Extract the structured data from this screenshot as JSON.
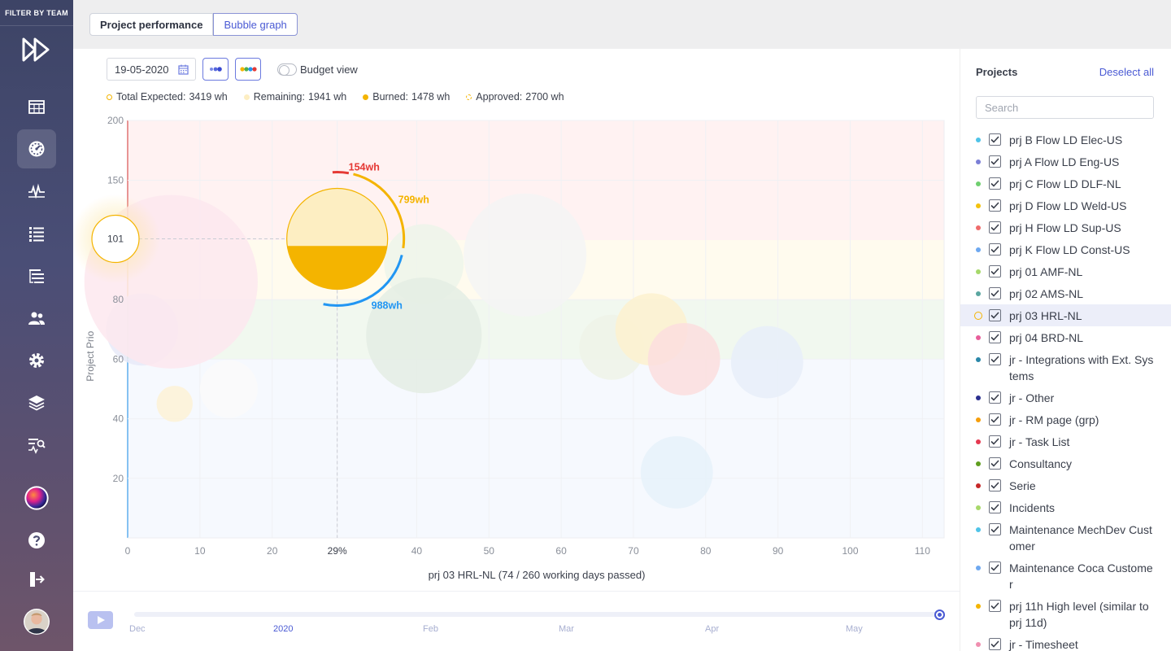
{
  "sidebar": {
    "filter_label": "FILTER BY TEAM",
    "items": [
      {
        "name": "calendar-grid-icon",
        "active": false
      },
      {
        "name": "dashboard-gauge-icon",
        "active": true
      },
      {
        "name": "activity-pulse-icon",
        "active": false
      },
      {
        "name": "list-icon",
        "active": false
      },
      {
        "name": "tree-list-icon",
        "active": false
      },
      {
        "name": "users-icon",
        "active": false
      },
      {
        "name": "gear-icon",
        "active": false
      },
      {
        "name": "layers-icon",
        "active": false
      },
      {
        "name": "report-search-icon",
        "active": false
      },
      {
        "name": "color-orb-icon",
        "active": false
      },
      {
        "name": "help-icon",
        "active": false
      },
      {
        "name": "logout-icon",
        "active": false
      },
      {
        "name": "user-avatar",
        "active": false
      }
    ]
  },
  "tabs": [
    {
      "label": "Project performance",
      "selected": false
    },
    {
      "label": "Bubble graph",
      "selected": true
    }
  ],
  "toolbar": {
    "date": "19-05-2020",
    "budget_view_label": "Budget view",
    "budget_view_on": false
  },
  "legend": [
    {
      "label": "Total Expected:",
      "value": "3419 wh",
      "color": "#f4b400",
      "style": "ring"
    },
    {
      "label": "Remaining:",
      "value": "1941 wh",
      "color": "#fdeec2",
      "style": "fill"
    },
    {
      "label": "Burned:",
      "value": "1478 wh",
      "color": "#f4b400",
      "style": "fill"
    },
    {
      "label": "Approved:",
      "value": "2700 wh",
      "color": "#f4b400",
      "style": "dashed"
    }
  ],
  "chart_data": {
    "type": "scatter",
    "ylabel": "Project Prio",
    "xlabel": "prj 03 HRL-NL (74 / 260 working days passed)",
    "xlim": [
      0,
      113
    ],
    "ylim": [
      0,
      200
    ],
    "x_ticks": [
      0,
      10,
      20,
      29,
      40,
      50,
      60,
      70,
      80,
      90,
      100,
      110
    ],
    "x_tick_labels": [
      "0",
      "10",
      "20",
      "29%",
      "40",
      "50",
      "60",
      "70",
      "80",
      "90",
      "100",
      "110"
    ],
    "y_ticks": [
      20,
      40,
      60,
      80,
      150,
      200
    ],
    "bands": [
      {
        "from": 0,
        "to": 60,
        "color": "#f6f9fe",
        "axis_color": "#2196f3"
      },
      {
        "from": 60,
        "to": 80,
        "color": "#f1f8ef",
        "axis_color": "#4caf50"
      },
      {
        "from": 80,
        "to": 100,
        "color": "#fffbee",
        "axis_color": "#f4b400"
      },
      {
        "from": 100,
        "to": 200,
        "color": "#fff2f2",
        "axis_color": "#e53935"
      }
    ],
    "selected": {
      "name": "prj 03 HRL-NL",
      "x": 29,
      "y": 101,
      "prio_label": "101",
      "burned_fraction": 0.43,
      "arcs": [
        {
          "label": "154wh",
          "color": "#e53935"
        },
        {
          "label": "799wh",
          "color": "#f4b400"
        },
        {
          "label": "988wh",
          "color": "#2196f3"
        }
      ]
    },
    "bubbles": [
      {
        "x": 2,
        "y": 70,
        "r": 5,
        "color": "#e8eaf8"
      },
      {
        "x": 6,
        "y": 86,
        "r": 12,
        "color": "#fde8ee"
      },
      {
        "x": 6.5,
        "y": 45,
        "r": 2.5,
        "color": "#fdf2d6"
      },
      {
        "x": 14,
        "y": 50,
        "r": 4,
        "color": "#fafafa"
      },
      {
        "x": 41,
        "y": 92,
        "r": 5.5,
        "color": "#edf5ea"
      },
      {
        "x": 41,
        "y": 68,
        "r": 8,
        "color": "#e4ede4"
      },
      {
        "x": 55,
        "y": 95,
        "r": 8.5,
        "color": "#f4f4f4"
      },
      {
        "x": 67,
        "y": 64,
        "r": 4.5,
        "color": "#eef3e8"
      },
      {
        "x": 72.5,
        "y": 70,
        "r": 5,
        "color": "#fdf1cf"
      },
      {
        "x": 77,
        "y": 60,
        "r": 5,
        "color": "#fbdede"
      },
      {
        "x": 88.5,
        "y": 59,
        "r": 5,
        "color": "#e8eef9"
      },
      {
        "x": 76,
        "y": 22,
        "r": 5,
        "color": "#e6f2fa"
      }
    ]
  },
  "timeline": {
    "labels": [
      {
        "text": "Dec",
        "year": false
      },
      {
        "text": "2020",
        "year": true
      },
      {
        "text": "Feb",
        "year": false
      },
      {
        "text": "Mar",
        "year": false
      },
      {
        "text": "Apr",
        "year": false
      },
      {
        "text": "May",
        "year": false
      }
    ],
    "progress": 1.0
  },
  "projects": {
    "title": "Projects",
    "deselect_label": "Deselect all",
    "search_placeholder": "Search",
    "items": [
      {
        "name": "prj B Flow LD Elec-US",
        "color": "#4fc3e8",
        "checked": true,
        "highlighted": false
      },
      {
        "name": "prj A Flow LD Eng-US",
        "color": "#7b7fd6",
        "checked": true,
        "highlighted": false
      },
      {
        "name": "prj C Flow LD DLF-NL",
        "color": "#6fcf6f",
        "checked": true,
        "highlighted": false
      },
      {
        "name": "prj D Flow LD Weld-US",
        "color": "#f4c20d",
        "checked": true,
        "highlighted": false
      },
      {
        "name": "prj H Flow LD Sup-US",
        "color": "#ef6b6b",
        "checked": true,
        "highlighted": false
      },
      {
        "name": "prj K Flow LD Const-US",
        "color": "#6ea8f0",
        "checked": true,
        "highlighted": false
      },
      {
        "name": "prj 01 AMF-NL",
        "color": "#a6d86a",
        "checked": true,
        "highlighted": false
      },
      {
        "name": "prj 02 AMS-NL",
        "color": "#5aa6a0",
        "checked": true,
        "highlighted": false
      },
      {
        "name": "prj 03 HRL-NL",
        "color": "#f4b400",
        "checked": true,
        "highlighted": true
      },
      {
        "name": "prj 04 BRD-NL",
        "color": "#e85d9a",
        "checked": true,
        "highlighted": false
      },
      {
        "name": "jr - Integrations with Ext. Systems",
        "color": "#2a87a8",
        "checked": true,
        "highlighted": false
      },
      {
        "name": "jr - Other",
        "color": "#2b2f8f",
        "checked": true,
        "highlighted": false
      },
      {
        "name": "jr - RM page (grp)",
        "color": "#f59e0b",
        "checked": true,
        "highlighted": false
      },
      {
        "name": "jr - Task List",
        "color": "#e53950",
        "checked": true,
        "highlighted": false
      },
      {
        "name": "Consultancy",
        "color": "#5f9e1f",
        "checked": true,
        "highlighted": false
      },
      {
        "name": "Serie",
        "color": "#c62828",
        "checked": true,
        "highlighted": false
      },
      {
        "name": "Incidents",
        "color": "#a8d86a",
        "checked": true,
        "highlighted": false
      },
      {
        "name": "Maintenance MechDev Customer",
        "color": "#4fc3e8",
        "checked": true,
        "highlighted": false
      },
      {
        "name": "Maintenance Coca Customer",
        "color": "#6ea8f0",
        "checked": true,
        "highlighted": false
      },
      {
        "name": "prj 11h High level (similar to prj 11d)",
        "color": "#f4b400",
        "checked": true,
        "highlighted": false
      },
      {
        "name": "jr - Timesheet",
        "color": "#f08fb0",
        "checked": true,
        "highlighted": false
      }
    ]
  }
}
